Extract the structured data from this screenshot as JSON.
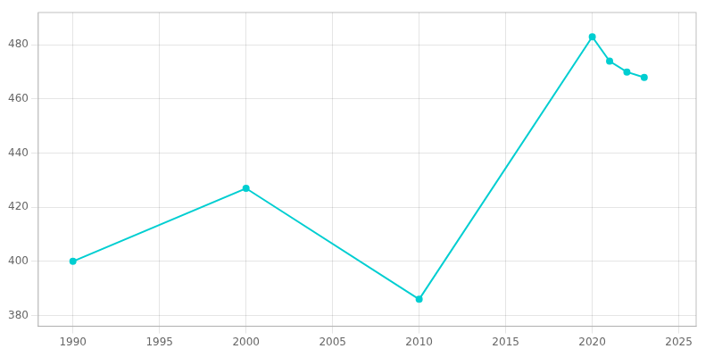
{
  "chart_data": {
    "type": "line",
    "x": [
      1990,
      2000,
      2010,
      2020,
      2021,
      2022,
      2023
    ],
    "values": [
      400,
      427,
      386,
      483,
      474,
      470,
      468
    ],
    "color": "#00CED1",
    "marker": "circle",
    "xlim": [
      1988,
      2026
    ],
    "xticks": [
      1990,
      1995,
      2000,
      2005,
      2010,
      2015,
      2020,
      2025
    ],
    "ylim": [
      376,
      492
    ],
    "yticks": [
      380,
      400,
      420,
      440,
      460,
      480
    ],
    "grid": true
  }
}
